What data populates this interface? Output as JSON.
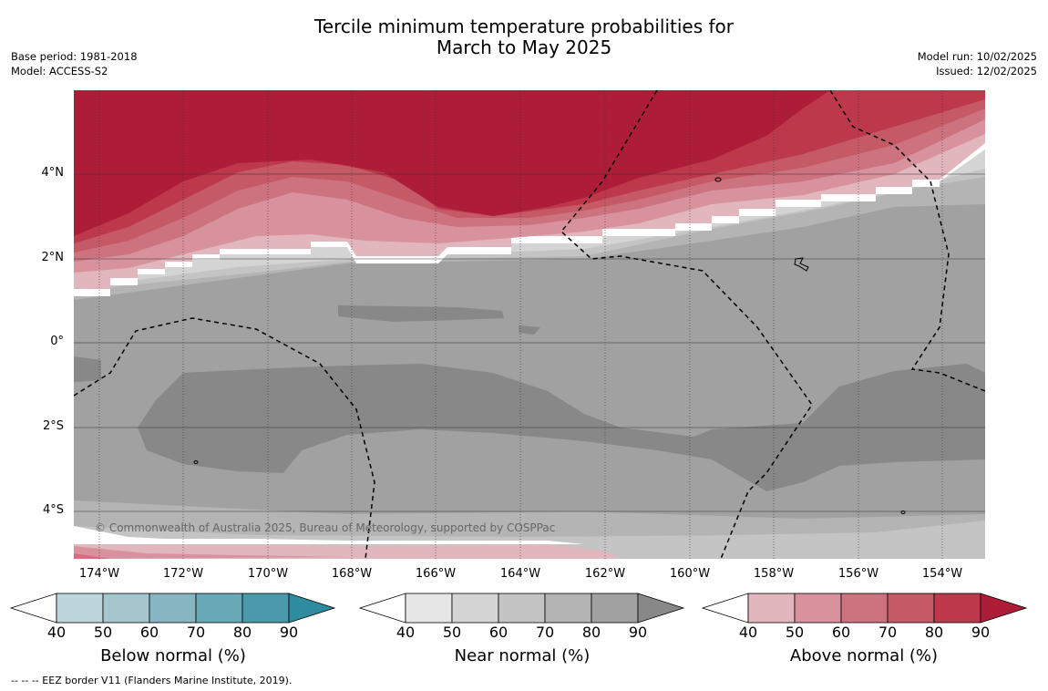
{
  "title": {
    "line1": "Tercile minimum temperature probabilities for",
    "line2": "March to May 2025"
  },
  "meta_left": {
    "base_period": "Base period: 1981-2018",
    "model": "Model: ACCESS-S2"
  },
  "meta_right": {
    "model_run": "Model run: 10/02/2025",
    "issued": "Issued: 12/02/2025"
  },
  "map": {
    "copyright": "© Commonwealth of Australia 2025, Bureau of Meteorology, supported by COSPPac",
    "lat_labels": [
      "4°N",
      "2°N",
      "0°",
      "2°S",
      "4°S"
    ],
    "lon_labels": [
      "174°W",
      "172°W",
      "170°W",
      "168°W",
      "166°W",
      "164°W",
      "162°W",
      "160°W",
      "158°W",
      "156°W",
      "154°W"
    ]
  },
  "colorbars": [
    {
      "label": "Below normal (%)",
      "ticks": [
        "40",
        "50",
        "60",
        "70",
        "80",
        "90"
      ],
      "colors": [
        "#bfd5dc",
        "#a5c6cd",
        "#87b5c2",
        "#6aa9b8",
        "#4b9aab",
        "#2f8c9f"
      ]
    },
    {
      "label": "Near normal (%)",
      "ticks": [
        "40",
        "50",
        "60",
        "70",
        "80",
        "90"
      ],
      "colors": [
        "#e6e6e6",
        "#d4d4d4",
        "#c4c4c4",
        "#b4b4b4",
        "#a1a1a1",
        "#888888"
      ]
    },
    {
      "label": "Above normal (%)",
      "ticks": [
        "40",
        "50",
        "60",
        "70",
        "80",
        "90"
      ],
      "colors": [
        "#e2b6bd",
        "#d7929d",
        "#cc737f",
        "#c55966",
        "#bc384a",
        "#ae1d38"
      ]
    }
  ],
  "footnote": "--  --  -- EEZ border V11 (Flanders Marine Institute, 2019)."
}
